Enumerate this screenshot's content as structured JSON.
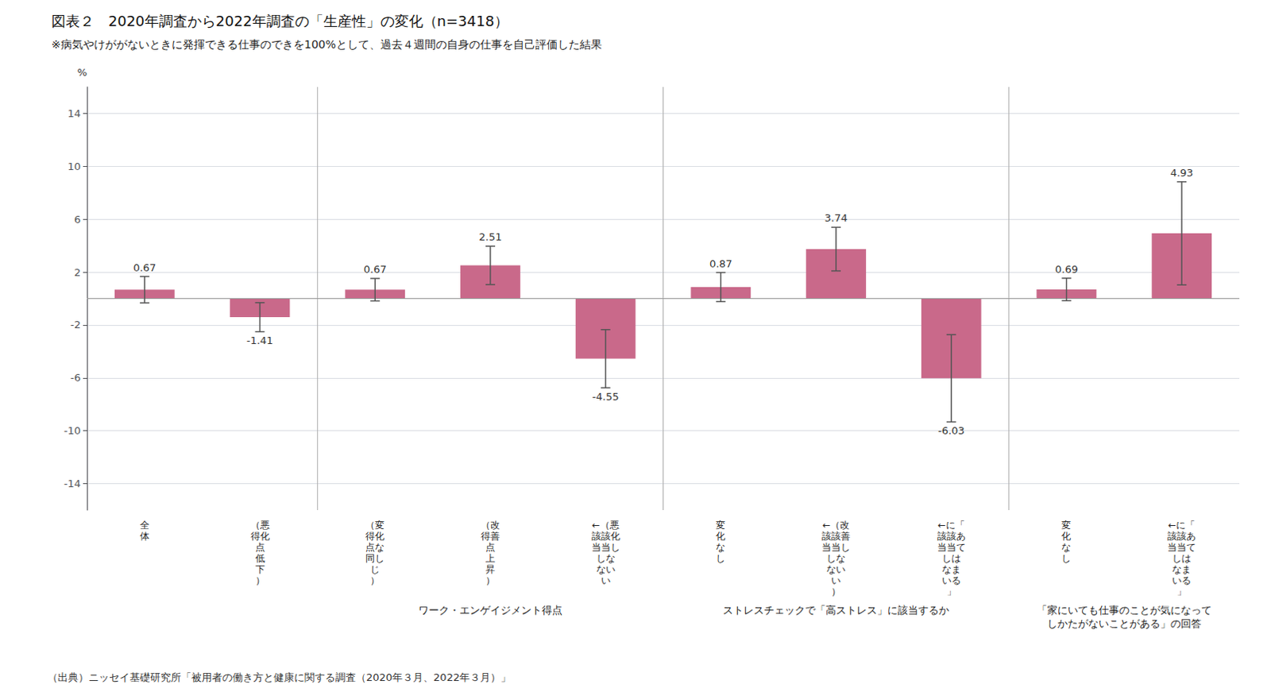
{
  "chart_data": {
    "type": "bar",
    "title": "図表２　2020年調査から2022年調査の「生産性」の変化（n=3418）",
    "subtitle": "※病気やけががないときに発揮できる仕事のできを100%として、過去４週間の自身の仕事を自己評価した結果",
    "footnote": "（出典）ニッセイ基礎研究所「被用者の働き方と健康に関する調査（2020年３月、2022年３月）」",
    "ylabel": "%",
    "categories": [
      "全\n体",
      "（悪\n得化\n点\n低\n下\n）",
      "（変\n得化\n点な\n同し\nじ\n）",
      "（改\n得善\n点\n上\n昇\n）",
      "←（悪\n該該化\n当当し\nしな\nない\nい",
      "変\n化\nな\nし",
      "←（改\n該該善\n当当し\nしな\nない\nい\n）",
      "←に「\n該該あ\n当当て\nしは\nなま\nいる\n」",
      "変\n化\nな\nし",
      "←に「\n該該あ\n当当て\nしは\nなま\nいる\n」"
    ],
    "values": [
      0.67,
      -1.41,
      0.67,
      2.51,
      -4.55,
      0.87,
      3.74,
      -6.03,
      0.69,
      4.93
    ],
    "errors": [
      1.0,
      1.1,
      0.85,
      1.45,
      2.2,
      1.1,
      1.65,
      3.3,
      0.85,
      3.9
    ],
    "color": "#C9698A",
    "ylim": [
      -16,
      16
    ],
    "yticks": [
      -14,
      -10,
      -6,
      -2,
      2,
      6,
      10,
      14
    ],
    "grid": true,
    "data_labels": true,
    "annotations": [
      "ワーク・エンゲイジメント得点",
      "ストレスチェックで「高ストレス」に該当するか",
      "「家にいても仕事のことが気になって\nしかたがないことがある」の回答"
    ]
  }
}
